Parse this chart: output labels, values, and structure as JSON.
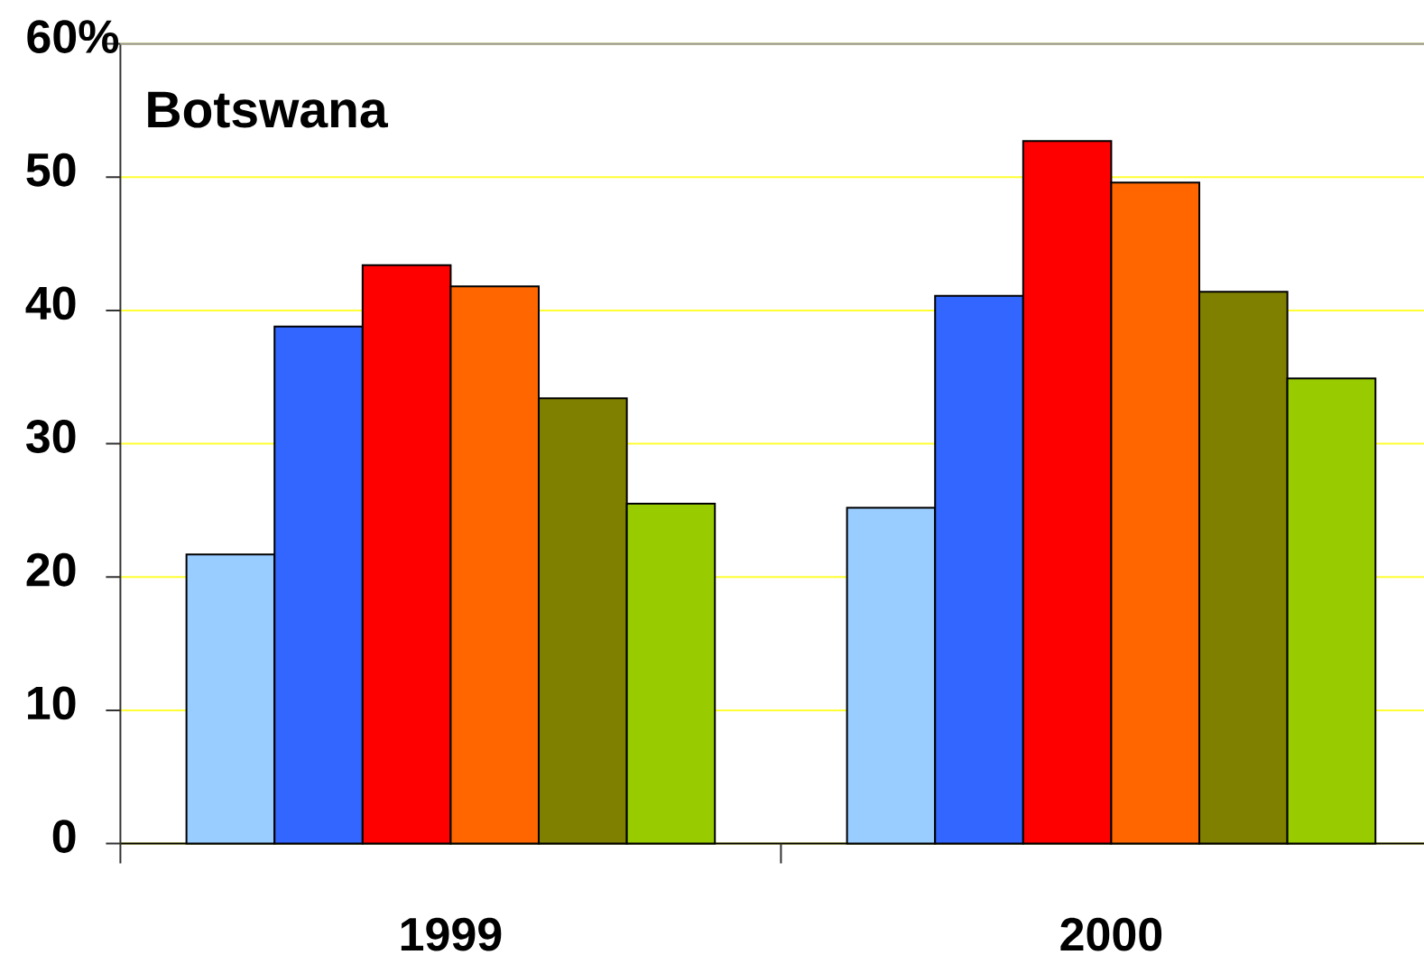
{
  "chart_data": {
    "type": "bar",
    "title": "Botswana",
    "categories": [
      "1999",
      "2000"
    ],
    "series": [
      {
        "color": "#99ccff",
        "values": [
          21.7,
          25.2
        ]
      },
      {
        "color": "#3366ff",
        "values": [
          38.8,
          41.1
        ]
      },
      {
        "color": "#ff0000",
        "values": [
          43.4,
          52.7
        ]
      },
      {
        "color": "#ff6600",
        "values": [
          41.8,
          49.6
        ]
      },
      {
        "color": "#808000",
        "values": [
          33.4,
          41.4
        ]
      },
      {
        "color": "#99cc00",
        "values": [
          25.5,
          34.9
        ]
      }
    ],
    "ylim": [
      0,
      60
    ],
    "yticks": [
      0,
      10,
      20,
      30,
      40,
      50,
      {
        "value": 60,
        "label": "60%"
      }
    ],
    "grid": "y"
  }
}
